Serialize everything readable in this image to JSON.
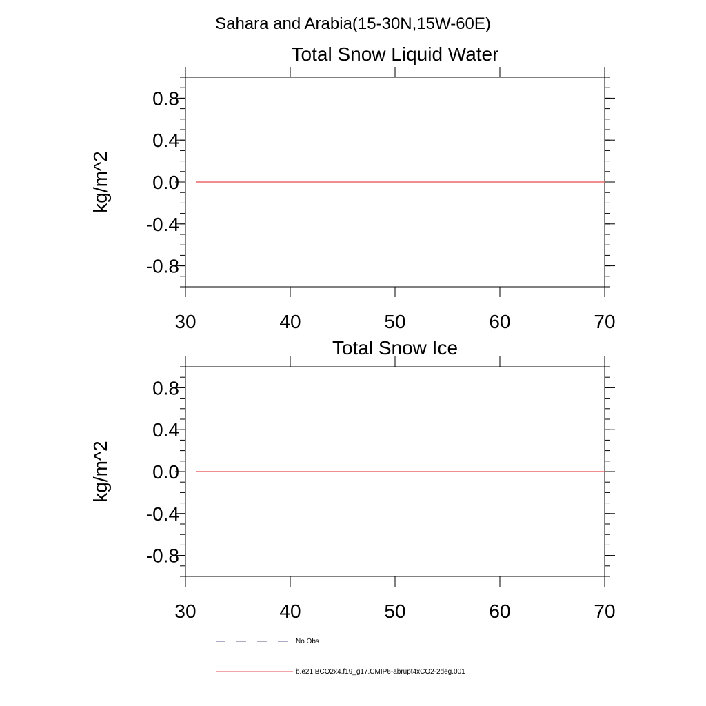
{
  "figure": {
    "suptitle": "Sahara and Arabia(15-30N,15W-60E)"
  },
  "legend": [
    {
      "label": "No Obs",
      "style": "dashed",
      "color": "#5a5a8a"
    },
    {
      "label": "b.e21.BCO2x4.f19_g17.CMIP6-abrupt4xCO2-2deg.001",
      "style": "solid",
      "color": "#e8494f"
    }
  ],
  "chart_data": [
    {
      "type": "line",
      "title": "Total Snow Liquid Water",
      "xlabel": "",
      "ylabel": "kg/m^2",
      "xlim": [
        30,
        70
      ],
      "ylim": [
        -1,
        1
      ],
      "xticks": [
        30,
        40,
        50,
        60,
        70
      ],
      "xtick_labels": [
        "30",
        "40",
        "50",
        "60",
        "70"
      ],
      "yticks": [
        -0.8,
        -0.4,
        0.0,
        0.4,
        0.8
      ],
      "ytick_labels": [
        "-0.8",
        "-0.4",
        "0.0",
        "0.4",
        "0.8"
      ],
      "grid": false,
      "series": [
        {
          "name": "b.e21.BCO2x4.f19_g17.CMIP6-abrupt4xCO2-2deg.001",
          "color": "#e8494f",
          "x": [
            31,
            70
          ],
          "y": [
            0.0,
            0.0
          ]
        }
      ]
    },
    {
      "type": "line",
      "title": "Total Snow Ice",
      "xlabel": "",
      "ylabel": "kg/m^2",
      "xlim": [
        30,
        70
      ],
      "ylim": [
        -1,
        1
      ],
      "xticks": [
        30,
        40,
        50,
        60,
        70
      ],
      "xtick_labels": [
        "30",
        "40",
        "50",
        "60",
        "70"
      ],
      "yticks": [
        -0.8,
        -0.4,
        0.0,
        0.4,
        0.8
      ],
      "ytick_labels": [
        "-0.8",
        "-0.4",
        "0.0",
        "0.4",
        "0.8"
      ],
      "grid": false,
      "series": [
        {
          "name": "b.e21.BCO2x4.f19_g17.CMIP6-abrupt4xCO2-2deg.001",
          "color": "#e8494f",
          "x": [
            31,
            70
          ],
          "y": [
            0.0,
            0.0
          ]
        }
      ]
    }
  ]
}
